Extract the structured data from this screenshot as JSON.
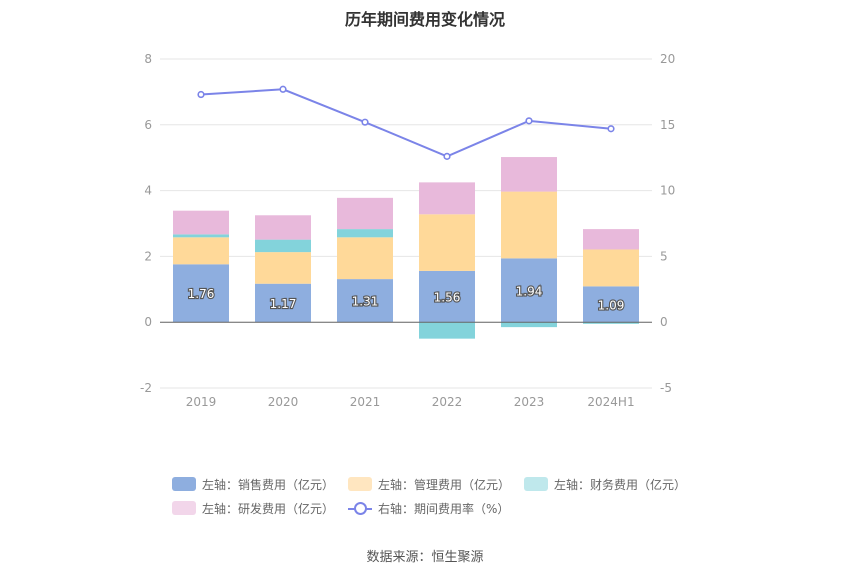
{
  "chart_data": {
    "type": "bar",
    "title": "历年期间费用变化情况",
    "categories": [
      "2019",
      "2020",
      "2021",
      "2022",
      "2023",
      "2024H1"
    ],
    "left_axis": {
      "ylim": [
        -2,
        8
      ],
      "ticks": [
        "-2",
        "0",
        "2",
        "4",
        "6",
        "8"
      ],
      "unit": "亿元"
    },
    "right_axis": {
      "ylim": [
        -5,
        20
      ],
      "ticks": [
        "-5",
        "0",
        "5",
        "10",
        "15",
        "20"
      ],
      "unit": "%"
    },
    "series": [
      {
        "name": "左轴：销售费用（亿元）",
        "axis": "left",
        "stack": true,
        "color": "#8eaedf",
        "values": [
          1.76,
          1.17,
          1.31,
          1.56,
          1.94,
          1.09
        ],
        "labels": [
          "1.76",
          "1.17",
          "1.31",
          "1.56",
          "1.94",
          "1.09"
        ]
      },
      {
        "name": "左轴：管理费用（亿元）",
        "axis": "left",
        "stack": true,
        "color": "#ffd999",
        "values": [
          0.82,
          0.96,
          1.27,
          1.72,
          2.03,
          1.12
        ]
      },
      {
        "name": "左轴：财务费用（亿元）",
        "axis": "left",
        "stack": true,
        "color": "#83d3db",
        "values": [
          0.09,
          0.38,
          0.25,
          -0.5,
          -0.15,
          -0.05
        ]
      },
      {
        "name": "左轴：研发费用（亿元）",
        "axis": "left",
        "stack": true,
        "color": "#e8b9db",
        "values": [
          0.72,
          0.74,
          0.95,
          0.97,
          1.05,
          0.62
        ]
      },
      {
        "name": "右轴：期间费用率（%）",
        "axis": "right",
        "type": "line",
        "color": "#7b84e8",
        "values": [
          17.3,
          17.7,
          15.2,
          12.6,
          15.3,
          14.7
        ]
      }
    ],
    "legend": "bottom-center",
    "grid": true
  },
  "legend_items": [
    {
      "label": "左轴：销售费用（亿元）",
      "color": "#8eaedf",
      "kind": "bar"
    },
    {
      "label": "左轴：管理费用（亿元）",
      "color": "#ffe6c0",
      "kind": "bar"
    },
    {
      "label": "左轴：财务费用（亿元）",
      "color": "#bfe8ec",
      "kind": "bar"
    },
    {
      "label": "左轴：研发费用（亿元）",
      "color": "#f2d6ea",
      "kind": "bar"
    },
    {
      "label": "右轴：期间费用率（%）",
      "color": "#7b84e8",
      "kind": "line"
    }
  ],
  "source": "数据来源：恒生聚源"
}
